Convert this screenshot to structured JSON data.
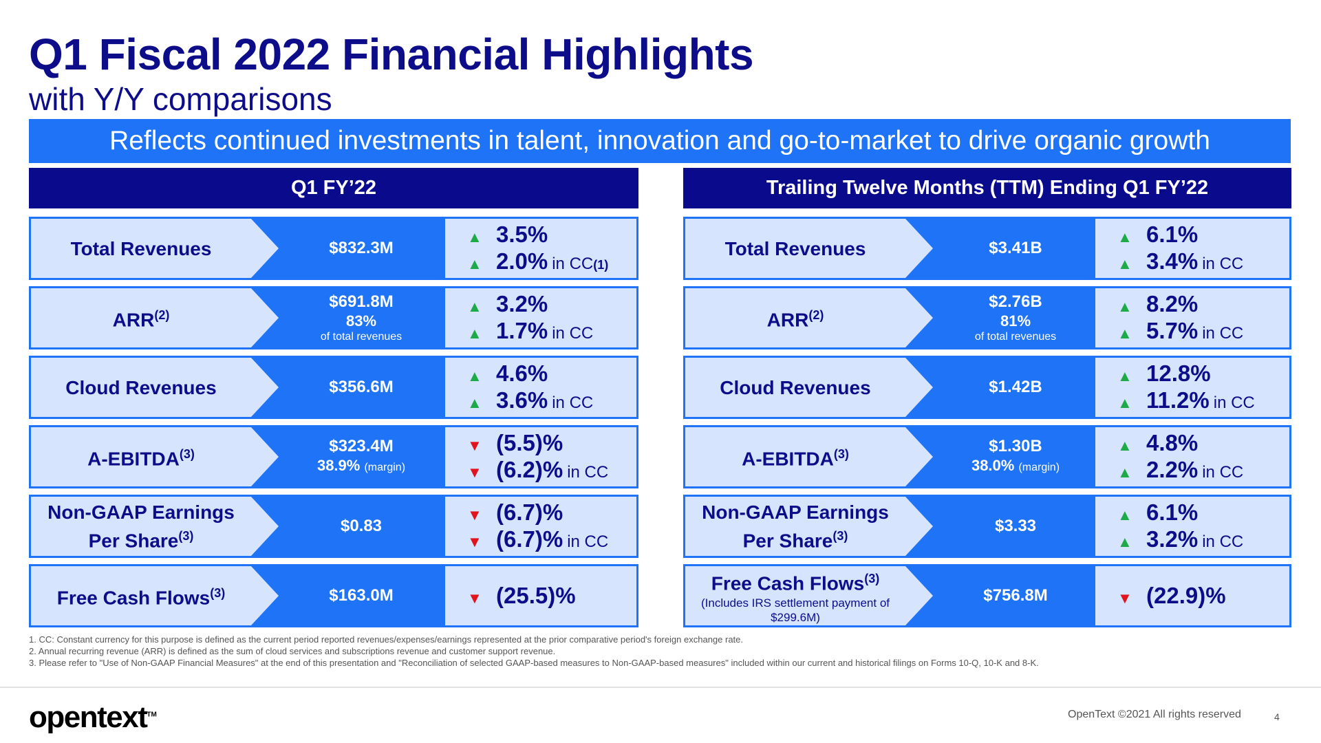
{
  "title": "Q1 Fiscal 2022 Financial Highlights",
  "subtitle": "with Y/Y comparisons",
  "banner": "Reflects continued investments in talent, innovation and go-to-market to drive organic growth",
  "colors": {
    "navy": "#0a0a8c",
    "blue": "#1e73f6",
    "light_blue": "#d6e4fd",
    "up": "#1eaa48",
    "down": "#e1141e"
  },
  "left": {
    "header": "Q1 FY’22",
    "rows": [
      {
        "label": "Total Revenues",
        "sup": "",
        "value1": "$832.3M",
        "value2": "",
        "value3": "",
        "change1": "3.5%",
        "dir1": "up",
        "change2": "2.0%",
        "dir2": "up",
        "cc": "in CC",
        "cc_sup": "(1)"
      },
      {
        "label": "ARR",
        "sup": "(2)",
        "value1": "$691.8M",
        "value2": "83%",
        "value3": "of total revenues",
        "change1": "3.2%",
        "dir1": "up",
        "change2": "1.7%",
        "dir2": "up",
        "cc": "in CC",
        "cc_sup": ""
      },
      {
        "label": "Cloud Revenues",
        "sup": "",
        "value1": "$356.6M",
        "value2": "",
        "value3": "",
        "change1": "4.6%",
        "dir1": "up",
        "change2": "3.6%",
        "dir2": "up",
        "cc": "in CC",
        "cc_sup": ""
      },
      {
        "label": "A-EBITDA",
        "sup": "(3)",
        "value1": "$323.4M",
        "value2": "38.9%",
        "value2_small": "(margin)",
        "value3": "",
        "change1": "(5.5)%",
        "dir1": "down",
        "change2": "(6.2)%",
        "dir2": "down",
        "cc": "in CC",
        "cc_sup": ""
      },
      {
        "label": "Non-GAAP Earnings",
        "label2": "Per Share",
        "sup": "(3)",
        "value1": "$0.83",
        "value2": "",
        "value3": "",
        "change1": "(6.7)%",
        "dir1": "down",
        "change2": "(6.7)%",
        "dir2": "down",
        "cc": "in CC",
        "cc_sup": ""
      },
      {
        "label": "Free Cash Flows",
        "sup": "(3)",
        "value1": "$163.0M",
        "value2": "",
        "value3": "",
        "change1": "(25.5)%",
        "dir1": "down"
      }
    ]
  },
  "right": {
    "header": "Trailing Twelve Months (TTM) Ending Q1 FY’22",
    "rows": [
      {
        "label": "Total Revenues",
        "sup": "",
        "value1": "$3.41B",
        "value2": "",
        "value3": "",
        "change1": "6.1%",
        "dir1": "up",
        "change2": "3.4%",
        "dir2": "up",
        "cc": "in CC"
      },
      {
        "label": "ARR",
        "sup": "(2)",
        "value1": "$2.76B",
        "value2": "81%",
        "value3": "of total revenues",
        "change1": "8.2%",
        "dir1": "up",
        "change2": "5.7%",
        "dir2": "up",
        "cc": "in CC"
      },
      {
        "label": "Cloud Revenues",
        "sup": "",
        "value1": "$1.42B",
        "value2": "",
        "value3": "",
        "change1": "12.8%",
        "dir1": "up",
        "change2": "11.2%",
        "dir2": "up",
        "cc": "in CC"
      },
      {
        "label": "A-EBITDA",
        "sup": "(3)",
        "value1": "$1.30B",
        "value2": "38.0%",
        "value2_small": "(margin)",
        "value3": "",
        "change1": "4.8%",
        "dir1": "up",
        "change2": "2.2%",
        "dir2": "up",
        "cc": "in CC"
      },
      {
        "label": "Non-GAAP Earnings",
        "label2": "Per Share",
        "sup": "(3)",
        "value1": "$3.33",
        "value2": "",
        "value3": "",
        "change1": "6.1%",
        "dir1": "up",
        "change2": "3.2%",
        "dir2": "up",
        "cc": "in CC"
      },
      {
        "label": "Free Cash Flows",
        "sup": "(3)",
        "note": "(Includes IRS settlement payment of $299.6M)",
        "value1": "$756.8M",
        "value2": "",
        "value3": "",
        "change1": "(22.9)%",
        "dir1": "down"
      }
    ]
  },
  "footnotes": [
    "1.  CC: Constant currency for this purpose is defined as the current period reported revenues/expenses/earnings represented at the prior comparative period's foreign exchange rate.",
    "2.  Annual recurring revenue (ARR) is defined as the sum of cloud services and subscriptions revenue and customer support revenue.",
    "3.  Please refer to \"Use of Non-GAAP Financial Measures\" at the end of this presentation and \"Reconciliation of selected GAAP-based measures to Non-GAAP-based measures\" included within our current and historical filings on Forms 10-Q, 10-K and 8-K."
  ],
  "logo": "opentext",
  "logo_tm": "TM",
  "copyright": "OpenText ©2021 All rights reserved",
  "page_number": "4"
}
